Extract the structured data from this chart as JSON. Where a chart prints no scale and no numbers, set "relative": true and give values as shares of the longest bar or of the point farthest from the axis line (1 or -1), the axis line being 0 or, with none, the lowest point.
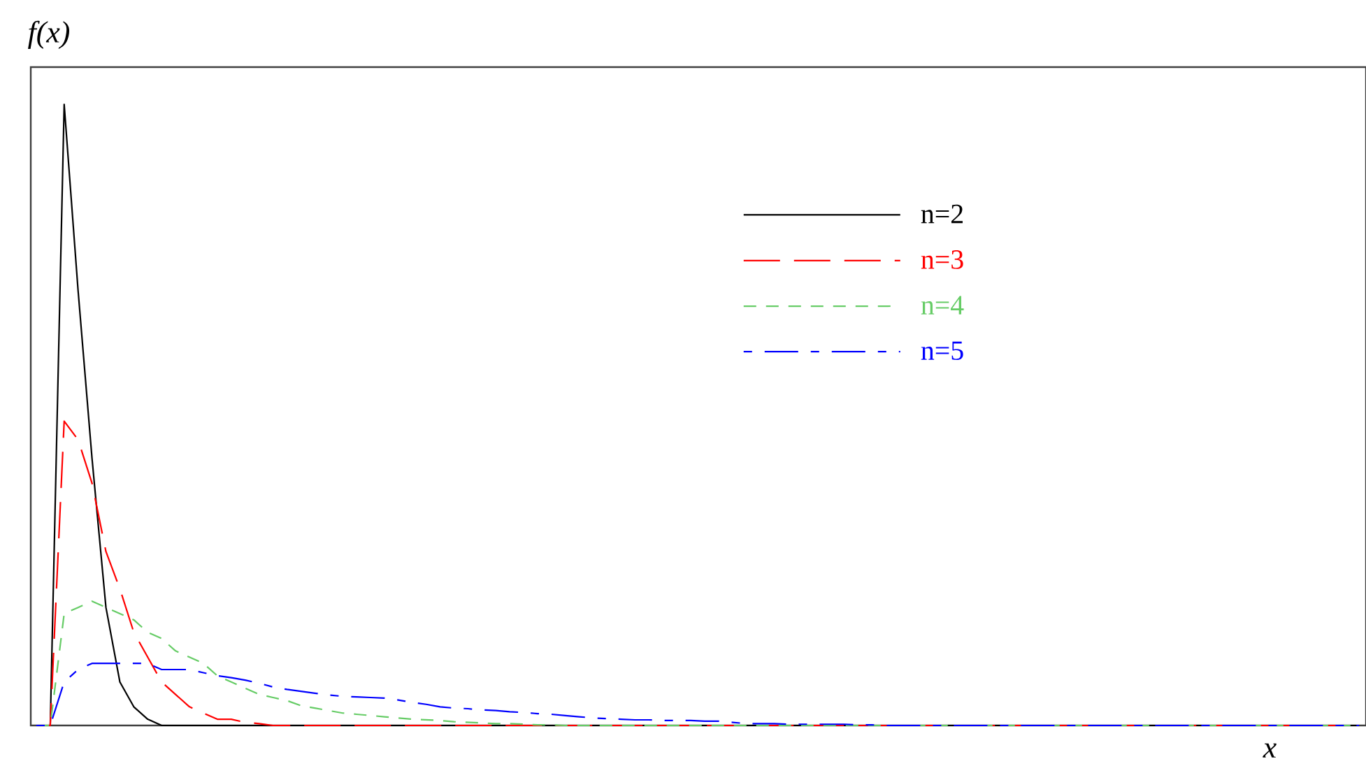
{
  "chart_data": {
    "type": "line",
    "relative": true,
    "xlabel": "x",
    "ylabel": "f(x)",
    "legend": "top right",
    "categories": [
      null,
      null,
      null,
      null,
      null,
      null,
      null,
      null,
      null,
      null,
      null,
      null,
      null,
      null,
      null,
      null,
      null,
      null,
      null,
      null,
      null,
      null,
      null,
      null,
      null,
      null,
      null,
      null,
      null,
      null,
      null,
      null,
      null,
      null,
      null,
      null,
      null,
      null,
      null,
      null,
      null,
      null,
      null,
      null,
      null,
      null,
      null,
      null,
      null,
      null,
      null,
      null,
      null,
      null,
      null,
      null,
      null,
      null,
      null,
      null,
      null,
      null,
      null,
      null,
      null,
      null,
      null,
      null,
      null,
      null,
      null,
      null,
      null,
      null,
      null,
      null,
      null,
      null,
      null,
      null,
      null,
      null,
      null,
      null,
      null,
      null,
      null,
      null,
      null,
      null,
      null,
      null,
      null,
      null,
      null,
      null
    ],
    "series": [
      {
        "name": "n=2",
        "color": "#000000",
        "line_style": "solid",
        "values": [
          0,
          0,
          1,
          0.7,
          0.43,
          0.19,
          0.07,
          0.03,
          0.01,
          0,
          0,
          0,
          0,
          0,
          0,
          0,
          0,
          0,
          0,
          0,
          0,
          0,
          0,
          0,
          0,
          0,
          0,
          0,
          0,
          0,
          0,
          0,
          0,
          0,
          0,
          0,
          0,
          0,
          0,
          0,
          0,
          0,
          0,
          0,
          0,
          0,
          0,
          0,
          0,
          0,
          0,
          0,
          0,
          0,
          0,
          0,
          0,
          0,
          0,
          0,
          0,
          0,
          0,
          0,
          0,
          0,
          0,
          0,
          0,
          0,
          0,
          0,
          0,
          0,
          0,
          0,
          0,
          0,
          0,
          0,
          0,
          0,
          0,
          0,
          0,
          0,
          0,
          0,
          0,
          0,
          0,
          0,
          0,
          0,
          0,
          0
        ]
      },
      {
        "name": "n=3",
        "color": "#ff0000",
        "line_style": "long dashed",
        "values": [
          0,
          0,
          0.49,
          0.46,
          0.39,
          0.28,
          0.22,
          0.15,
          0.11,
          0.07,
          0.05,
          0.03,
          0.02,
          0.01,
          0.01,
          0.005,
          0.003,
          0,
          0,
          0,
          0,
          0,
          0,
          0,
          0,
          0,
          0,
          0,
          0,
          0,
          0,
          0,
          0,
          0,
          0,
          0,
          0,
          0,
          0,
          0,
          0,
          0,
          0,
          0,
          0,
          0,
          0,
          0,
          0,
          0,
          0,
          0,
          0,
          0,
          0,
          0,
          0,
          0,
          0,
          0,
          0,
          0,
          0,
          0,
          0,
          0,
          0,
          0,
          0,
          0,
          0,
          0,
          0,
          0,
          0,
          0,
          0,
          0,
          0,
          0,
          0,
          0,
          0,
          0,
          0,
          0,
          0,
          0,
          0,
          0,
          0,
          0,
          0,
          0,
          0,
          0
        ]
      },
      {
        "name": "n=4",
        "color": "#66cc66",
        "line_style": "dashed",
        "values": [
          0,
          0,
          0.18,
          0.19,
          0.2,
          0.19,
          0.18,
          0.17,
          0.15,
          0.14,
          0.12,
          0.11,
          0.1,
          0.08,
          0.07,
          0.06,
          0.05,
          0.045,
          0.04,
          0.032,
          0.028,
          0.024,
          0.02,
          0.018,
          0.016,
          0.014,
          0.012,
          0.01,
          0.009,
          0.008,
          0.006,
          0.005,
          0.004,
          0.003,
          0.003,
          0.002,
          0.001,
          0.001,
          0,
          0,
          0,
          0,
          0,
          0,
          0,
          0,
          0,
          0,
          0,
          0,
          0,
          0,
          0,
          0,
          0,
          0,
          0,
          0,
          0,
          0,
          0,
          0,
          0,
          0,
          0,
          0,
          0,
          0,
          0,
          0,
          0,
          0,
          0,
          0,
          0,
          0,
          0,
          0,
          0,
          0,
          0,
          0,
          0,
          0,
          0,
          0,
          0,
          0,
          0,
          0,
          0,
          0,
          0,
          0,
          0,
          0
        ]
      },
      {
        "name": "n=5",
        "color": "#0000ff",
        "line_style": "dash dot",
        "values": [
          0,
          0,
          0.07,
          0.09,
          0.1,
          0.1,
          0.1,
          0.1,
          0.1,
          0.09,
          0.09,
          0.09,
          0.085,
          0.08,
          0.077,
          0.073,
          0.068,
          0.062,
          0.058,
          0.055,
          0.052,
          0.049,
          0.047,
          0.046,
          0.045,
          0.044,
          0.041,
          0.037,
          0.034,
          0.03,
          0.028,
          0.027,
          0.025,
          0.024,
          0.022,
          0.021,
          0.019,
          0.018,
          0.016,
          0.014,
          0.012,
          0.011,
          0.01,
          0.009,
          0.009,
          0.008,
          0.008,
          0.008,
          0.007,
          0.007,
          0.005,
          0.003,
          0.003,
          0.003,
          0.002,
          0.002,
          0.002,
          0.002,
          0.002,
          0.001,
          0.001,
          0,
          0,
          0,
          0,
          0,
          0,
          0,
          0,
          0,
          0,
          0,
          0,
          0,
          0,
          0,
          0,
          0,
          0,
          0,
          0,
          0,
          0,
          0,
          0,
          0,
          0,
          0,
          0,
          0,
          0,
          0,
          0,
          0,
          0,
          0
        ]
      }
    ]
  }
}
